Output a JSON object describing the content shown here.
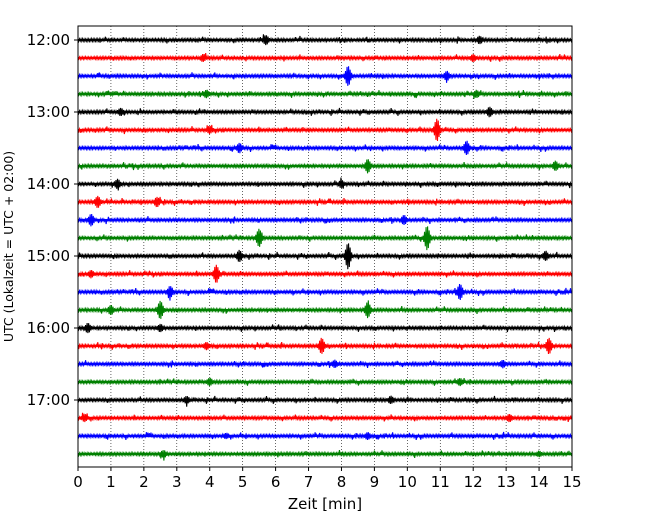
{
  "chart_data": {
    "type": "line",
    "title": "",
    "xlabel": "Zeit  [min]",
    "ylabel": "UTC (Lokalzeit = UTC + 02:00)",
    "xlim": [
      0,
      15
    ],
    "x_ticks": [
      "0",
      "1",
      "2",
      "3",
      "4",
      "5",
      "6",
      "7",
      "8",
      "9",
      "10",
      "11",
      "12",
      "13",
      "14",
      "15"
    ],
    "y_ticks": [
      "12:00",
      "13:00",
      "14:00",
      "15:00",
      "16:00",
      "17:00"
    ],
    "grid": "vertical dotted",
    "legend": "none",
    "row_interval_min": 15,
    "start_time": "12:00",
    "traces": [
      {
        "time": "12:00",
        "color": "#000000",
        "events": [
          {
            "t": 5.7,
            "a": 4
          },
          {
            "t": 12.2,
            "a": 3
          }
        ]
      },
      {
        "time": "12:15",
        "color": "#ff0000",
        "events": [
          {
            "t": 3.8,
            "a": 3
          },
          {
            "t": 12.0,
            "a": 3
          }
        ]
      },
      {
        "time": "12:30",
        "color": "#0000ff",
        "events": [
          {
            "t": 8.2,
            "a": 9
          },
          {
            "t": 11.2,
            "a": 4
          }
        ]
      },
      {
        "time": "12:45",
        "color": "#008000",
        "events": [
          {
            "t": 3.9,
            "a": 3
          },
          {
            "t": 12.1,
            "a": 3
          }
        ]
      },
      {
        "time": "13:00",
        "color": "#000000",
        "events": [
          {
            "t": 1.3,
            "a": 3
          },
          {
            "t": 12.5,
            "a": 4
          }
        ]
      },
      {
        "time": "13:15",
        "color": "#ff0000",
        "events": [
          {
            "t": 10.9,
            "a": 10
          },
          {
            "t": 4.0,
            "a": 3
          }
        ]
      },
      {
        "time": "13:30",
        "color": "#0000ff",
        "events": [
          {
            "t": 4.9,
            "a": 4
          },
          {
            "t": 11.8,
            "a": 6
          }
        ]
      },
      {
        "time": "13:45",
        "color": "#008000",
        "events": [
          {
            "t": 8.8,
            "a": 6
          },
          {
            "t": 14.5,
            "a": 4
          }
        ]
      },
      {
        "time": "14:00",
        "color": "#000000",
        "events": [
          {
            "t": 1.2,
            "a": 4
          },
          {
            "t": 8.0,
            "a": 3
          }
        ]
      },
      {
        "time": "14:15",
        "color": "#ff0000",
        "events": [
          {
            "t": 0.6,
            "a": 5
          },
          {
            "t": 2.4,
            "a": 4
          }
        ]
      },
      {
        "time": "14:30",
        "color": "#0000ff",
        "events": [
          {
            "t": 0.4,
            "a": 5
          },
          {
            "t": 9.9,
            "a": 4
          }
        ]
      },
      {
        "time": "14:45",
        "color": "#008000",
        "events": [
          {
            "t": 5.5,
            "a": 8
          },
          {
            "t": 10.6,
            "a": 11
          }
        ]
      },
      {
        "time": "15:00",
        "color": "#000000",
        "events": [
          {
            "t": 8.2,
            "a": 12
          },
          {
            "t": 4.9,
            "a": 5
          },
          {
            "t": 14.2,
            "a": 4
          }
        ]
      },
      {
        "time": "15:15",
        "color": "#ff0000",
        "events": [
          {
            "t": 4.2,
            "a": 8
          },
          {
            "t": 0.4,
            "a": 3
          }
        ]
      },
      {
        "time": "15:30",
        "color": "#0000ff",
        "events": [
          {
            "t": 11.6,
            "a": 7
          },
          {
            "t": 2.8,
            "a": 5
          }
        ]
      },
      {
        "time": "15:45",
        "color": "#008000",
        "events": [
          {
            "t": 2.5,
            "a": 8
          },
          {
            "t": 8.8,
            "a": 7
          },
          {
            "t": 1.0,
            "a": 4
          }
        ]
      },
      {
        "time": "16:00",
        "color": "#000000",
        "events": [
          {
            "t": 0.3,
            "a": 4
          },
          {
            "t": 2.5,
            "a": 3
          }
        ]
      },
      {
        "time": "16:15",
        "color": "#ff0000",
        "events": [
          {
            "t": 7.4,
            "a": 7
          },
          {
            "t": 14.3,
            "a": 7
          },
          {
            "t": 3.9,
            "a": 3
          }
        ]
      },
      {
        "time": "16:30",
        "color": "#0000ff",
        "events": [
          {
            "t": 7.8,
            "a": 3
          },
          {
            "t": 12.9,
            "a": 3
          }
        ]
      },
      {
        "time": "16:45",
        "color": "#008000",
        "events": [
          {
            "t": 4.0,
            "a": 3
          },
          {
            "t": 11.6,
            "a": 3
          }
        ]
      },
      {
        "time": "17:00",
        "color": "#000000",
        "events": [
          {
            "t": 3.3,
            "a": 3
          },
          {
            "t": 9.5,
            "a": 3
          }
        ]
      },
      {
        "time": "17:15",
        "color": "#ff0000",
        "events": [
          {
            "t": 13.1,
            "a": 3
          },
          {
            "t": 0.2,
            "a": 3
          }
        ]
      },
      {
        "time": "17:30",
        "color": "#0000ff",
        "events": [
          {
            "t": 8.8,
            "a": 3
          },
          {
            "t": 4.5,
            "a": 2
          }
        ]
      },
      {
        "time": "17:45",
        "color": "#008000",
        "events": [
          {
            "t": 2.6,
            "a": 3
          },
          {
            "t": 14.0,
            "a": 2
          }
        ]
      }
    ]
  }
}
